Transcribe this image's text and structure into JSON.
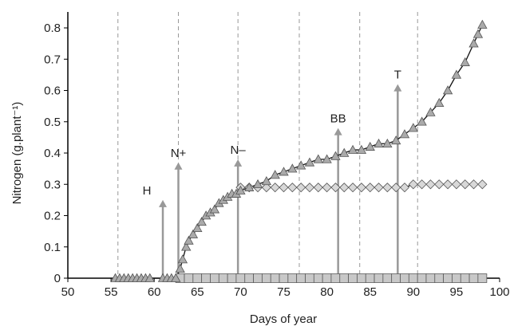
{
  "chart_data": {
    "type": "scatter",
    "xlabel": "Days of year",
    "ylabel": "Nitrogen (g.plant⁻¹)",
    "xlim": [
      50,
      100
    ],
    "xticks": [
      50,
      55,
      60,
      65,
      70,
      75,
      80,
      85,
      90,
      95,
      100
    ],
    "ylim": [
      0,
      0.8
    ],
    "yticks": [
      0,
      0.1,
      0.2,
      0.3,
      0.4,
      0.5,
      0.6,
      0.7,
      0.8
    ],
    "vlines": [
      55.8,
      62.8,
      69.7,
      76.8,
      83.8,
      90.5
    ],
    "annotations": [
      {
        "text": "H",
        "x": 61,
        "y": 0.25
      },
      {
        "text": "N+",
        "x": 62.8,
        "y": 0.37
      },
      {
        "text": "N–",
        "x": 69.7,
        "y": 0.38
      },
      {
        "text": "BB",
        "x": 81.3,
        "y": 0.48
      },
      {
        "text": "T",
        "x": 88.2,
        "y": 0.62
      }
    ],
    "series": [
      {
        "marker": "square",
        "color": "#c8c8c8",
        "x": [
          63,
          64,
          65,
          66,
          67,
          68,
          69,
          70,
          71,
          72,
          73,
          74,
          75,
          76,
          77,
          78,
          79,
          80,
          81,
          82,
          83,
          84,
          85,
          86,
          87,
          88,
          89,
          90,
          91,
          92,
          93,
          94,
          95,
          96,
          97,
          98
        ],
        "values": [
          0,
          0,
          0,
          0,
          0,
          0,
          0,
          0,
          0,
          0,
          0,
          0,
          0,
          0,
          0,
          0,
          0,
          0,
          0,
          0,
          0,
          0,
          0,
          0,
          0,
          0,
          0,
          0,
          0,
          0,
          0,
          0,
          0,
          0,
          0,
          0
        ]
      },
      {
        "marker": "diamond",
        "color": "#d8d8d8",
        "x": [
          70,
          71,
          72,
          73,
          74,
          75,
          76,
          77,
          78,
          79,
          80,
          81,
          82,
          83,
          84,
          85,
          86,
          87,
          88,
          89,
          90,
          91,
          92,
          93,
          94,
          95,
          96,
          97,
          98
        ],
        "values": [
          0.29,
          0.29,
          0.29,
          0.29,
          0.29,
          0.29,
          0.29,
          0.29,
          0.29,
          0.29,
          0.29,
          0.29,
          0.29,
          0.29,
          0.29,
          0.29,
          0.29,
          0.29,
          0.29,
          0.29,
          0.3,
          0.3,
          0.3,
          0.3,
          0.3,
          0.3,
          0.3,
          0.3,
          0.3
        ]
      },
      {
        "marker": "triangle",
        "color": "#aaaaaa",
        "x": [
          55.5,
          56,
          56.5,
          57,
          57.5,
          58,
          58.5,
          59,
          59.5,
          61,
          61.5,
          62,
          62.5,
          63,
          63.3,
          63.7,
          64,
          64.5,
          65,
          65.5,
          66,
          66.5,
          67,
          67.5,
          68,
          68.5,
          69,
          69.5,
          70,
          71,
          72,
          73,
          74,
          75,
          76,
          77,
          78,
          79,
          80,
          81,
          82,
          83,
          84,
          85,
          86,
          87,
          88,
          89,
          90,
          91,
          92,
          93,
          94,
          95,
          96,
          97,
          97.5,
          98
        ],
        "values": [
          0,
          0,
          0,
          0,
          0,
          0,
          0,
          0,
          0,
          0,
          0,
          0,
          0,
          0.03,
          0.06,
          0.1,
          0.12,
          0.14,
          0.16,
          0.18,
          0.2,
          0.21,
          0.22,
          0.24,
          0.25,
          0.26,
          0.27,
          0.27,
          0.28,
          0.29,
          0.3,
          0.31,
          0.33,
          0.34,
          0.35,
          0.36,
          0.37,
          0.38,
          0.38,
          0.39,
          0.4,
          0.41,
          0.41,
          0.42,
          0.43,
          0.43,
          0.44,
          0.46,
          0.48,
          0.5,
          0.53,
          0.56,
          0.6,
          0.65,
          0.69,
          0.75,
          0.78,
          0.81
        ]
      }
    ]
  }
}
